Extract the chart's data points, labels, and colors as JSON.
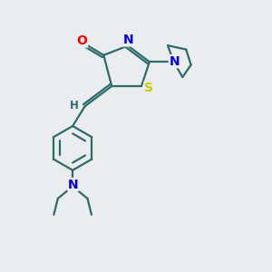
{
  "background_color": "#eaecee",
  "atom_colors": {
    "O": "#ff0000",
    "N": "#0000ee",
    "S": "#cccc00",
    "C": "#2d6b6b",
    "H": "#2d6b6b"
  },
  "line_color": "#2d6b6b",
  "line_width": 1.6,
  "font_size_atoms": 10,
  "font_size_small": 8.5,
  "xlim": [
    0,
    10
  ],
  "ylim": [
    0,
    10
  ]
}
